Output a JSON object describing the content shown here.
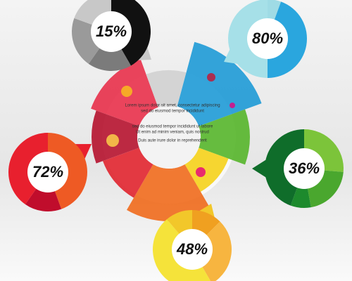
{
  "badges": [
    {
      "label": "15%"
    },
    {
      "label": "80%"
    },
    {
      "label": "72%"
    },
    {
      "label": "36%"
    },
    {
      "label": "48%"
    }
  ],
  "center": {
    "lines": [
      "Lorem ipsum dolor sit amet, consectetur adipiscing",
      "sed do eiusmod tempor incididunt",
      "sed do eiusmod tempor incididunt ut labore",
      "Ut enim ad minim veniam, quis nostrud",
      "Duis aute irure dolor in reprehenderit"
    ]
  }
}
